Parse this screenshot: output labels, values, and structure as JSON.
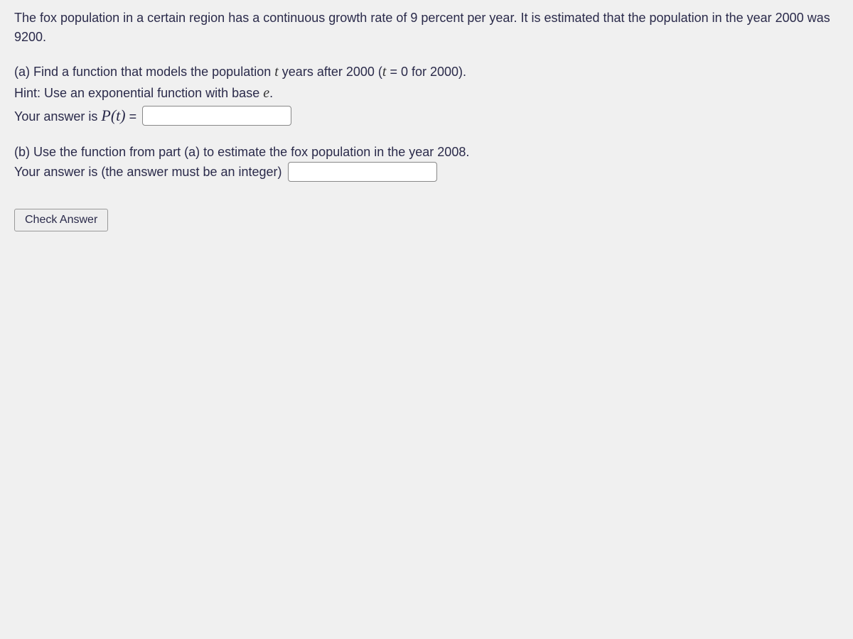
{
  "problem": {
    "intro": "The fox population in a certain region has a continuous growth rate of 9 percent per year. It is estimated that the population in the year 2000 was 9200."
  },
  "partA": {
    "question_prefix": "(a) Find a function that models the population ",
    "question_var": "t",
    "question_suffix": " years after 2000 (",
    "equation_left": "t",
    "equation_text": " = 0 for 2000).",
    "hint_prefix": "Hint: Use an exponential function with base ",
    "hint_var": "e",
    "hint_suffix": ".",
    "answer_label_prefix": "Your answer is ",
    "answer_func": "P(t)",
    "answer_equals": " ="
  },
  "partB": {
    "question": "(b) Use the function from part (a) to estimate the fox population in the year 2008.",
    "answer_label": "Your answer is (the answer must be an integer)"
  },
  "button": {
    "check_label": "Check Answer"
  },
  "styling": {
    "text_color": "#2a2a4a",
    "background_color": "#f0f0f0",
    "input_border_color": "#888888",
    "button_bg": "#eeeeee",
    "button_border": "#999999",
    "font_family": "Verdana, Geneva, sans-serif",
    "math_font": "Times New Roman",
    "body_fontsize": 18,
    "math_fontsize": 20
  }
}
